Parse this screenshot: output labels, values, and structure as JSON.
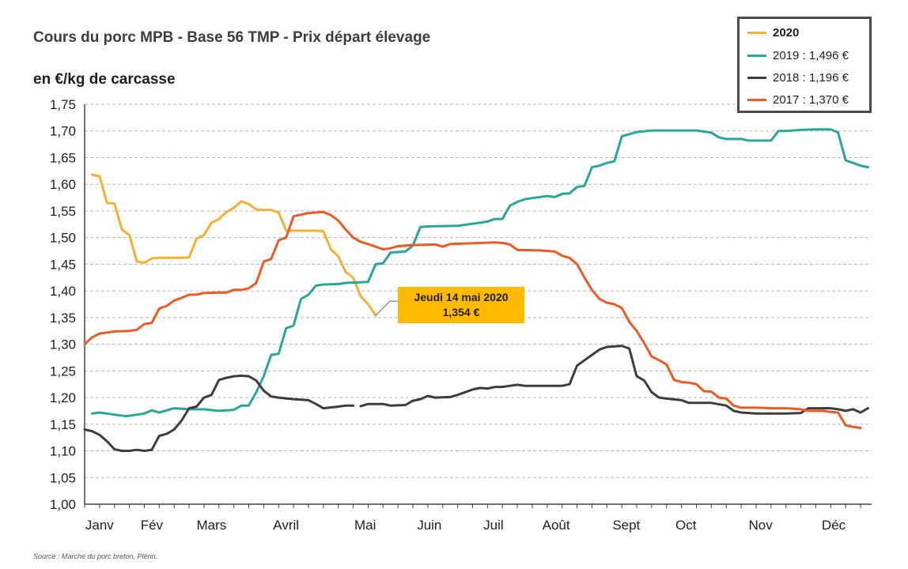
{
  "header": {
    "title": "Cours du porc MPB - Base 56 TMP - Prix départ élevage",
    "unit_label": "en €/kg de carcasse"
  },
  "legend": {
    "items": [
      {
        "label": "2020",
        "color": "#f5b230"
      },
      {
        "label": "2019 : 1,496 €",
        "color": "#2aa79b"
      },
      {
        "label": "2018 : 1,196 €",
        "color": "#3d3d3d"
      },
      {
        "label": "2017 : 1,370 €",
        "color": "#ee5a24"
      }
    ]
  },
  "callout": {
    "line1": "Jeudi 14 mai 2020",
    "line2": "1,354 €",
    "color": "#fdba00"
  },
  "footer": {
    "source": "Source : Marché du porc breton, Plérin."
  },
  "chart_data": {
    "type": "line",
    "ylim": [
      1.0,
      1.75
    ],
    "xlim": [
      0,
      52
    ],
    "y_ticks": [
      "1,00",
      "1,05",
      "1,10",
      "1,15",
      "1,20",
      "1,25",
      "1,30",
      "1,35",
      "1,40",
      "1,45",
      "1,50",
      "1,55",
      "1,60",
      "1,65",
      "1,70",
      "1,75"
    ],
    "months": [
      {
        "label": "Janv",
        "x": 1.0
      },
      {
        "label": "Fév",
        "x": 4.5
      },
      {
        "label": "Mars",
        "x": 8.5
      },
      {
        "label": "Avril",
        "x": 13.5
      },
      {
        "label": "Mai",
        "x": 18.8
      },
      {
        "label": "Juin",
        "x": 23.1
      },
      {
        "label": "Juil",
        "x": 27.4
      },
      {
        "label": "Août",
        "x": 31.6
      },
      {
        "label": "Sept",
        "x": 36.3
      },
      {
        "label": "Oct",
        "x": 40.3
      },
      {
        "label": "Nov",
        "x": 45.3
      },
      {
        "label": "Déc",
        "x": 50.2
      }
    ],
    "grid": true,
    "legend_position": "top-right",
    "series": [
      {
        "name": "2020",
        "color": "#f5b230",
        "points": [
          [
            0.5,
            1.618
          ],
          [
            1,
            1.615
          ],
          [
            1.5,
            1.565
          ],
          [
            2,
            1.564
          ],
          [
            2.5,
            1.515
          ],
          [
            3,
            1.505
          ],
          [
            3.5,
            1.455
          ],
          [
            4,
            1.453
          ],
          [
            4.5,
            1.461
          ],
          [
            5,
            1.462
          ],
          [
            5.5,
            1.462
          ],
          [
            6,
            1.462
          ],
          [
            6.5,
            1.462
          ],
          [
            7,
            1.463
          ],
          [
            7.5,
            1.498
          ],
          [
            8,
            1.505
          ],
          [
            8.5,
            1.528
          ],
          [
            9,
            1.535
          ],
          [
            9.5,
            1.548
          ],
          [
            10,
            1.556
          ],
          [
            10.5,
            1.568
          ],
          [
            11,
            1.563
          ],
          [
            11.5,
            1.553
          ],
          [
            12,
            1.552
          ],
          [
            12.5,
            1.552
          ],
          [
            13,
            1.547
          ],
          [
            13.5,
            1.513
          ],
          [
            14,
            1.513
          ],
          [
            14.5,
            1.513
          ],
          [
            15,
            1.513
          ],
          [
            15.5,
            1.513
          ],
          [
            16,
            1.512
          ],
          [
            16.5,
            1.478
          ],
          [
            17,
            1.465
          ],
          [
            17.5,
            1.435
          ],
          [
            18,
            1.425
          ],
          [
            18.5,
            1.39
          ],
          [
            19,
            1.375
          ],
          [
            19.5,
            1.354
          ]
        ]
      },
      {
        "name": "2019 : 1,496 €",
        "color": "#2aa79b",
        "points": [
          [
            0.5,
            1.17
          ],
          [
            1,
            1.172
          ],
          [
            2,
            1.168
          ],
          [
            2.8,
            1.165
          ],
          [
            3.5,
            1.168
          ],
          [
            4,
            1.17
          ],
          [
            4.5,
            1.176
          ],
          [
            5,
            1.172
          ],
          [
            6,
            1.18
          ],
          [
            7,
            1.178
          ],
          [
            8,
            1.178
          ],
          [
            9,
            1.175
          ],
          [
            10,
            1.177
          ],
          [
            10.5,
            1.185
          ],
          [
            11,
            1.185
          ],
          [
            11.5,
            1.21
          ],
          [
            12,
            1.24
          ],
          [
            12.5,
            1.28
          ],
          [
            13,
            1.282
          ],
          [
            13.5,
            1.33
          ],
          [
            14,
            1.335
          ],
          [
            14.5,
            1.385
          ],
          [
            15,
            1.393
          ],
          [
            15.5,
            1.41
          ],
          [
            16,
            1.412
          ],
          [
            17,
            1.413
          ],
          [
            17.5,
            1.415
          ],
          [
            19,
            1.417
          ],
          [
            19.5,
            1.45
          ],
          [
            20,
            1.452
          ],
          [
            20.5,
            1.472
          ],
          [
            21,
            1.473
          ],
          [
            21.5,
            1.474
          ],
          [
            22,
            1.485
          ],
          [
            22.5,
            1.52
          ],
          [
            23,
            1.521
          ],
          [
            25,
            1.522
          ],
          [
            26,
            1.526
          ],
          [
            27,
            1.53
          ],
          [
            27.5,
            1.535
          ],
          [
            28,
            1.535
          ],
          [
            28.5,
            1.56
          ],
          [
            29,
            1.567
          ],
          [
            29.5,
            1.572
          ],
          [
            30,
            1.574
          ],
          [
            31,
            1.578
          ],
          [
            31.5,
            1.576
          ],
          [
            32,
            1.582
          ],
          [
            32.5,
            1.583
          ],
          [
            33,
            1.595
          ],
          [
            33.5,
            1.597
          ],
          [
            34,
            1.632
          ],
          [
            34.5,
            1.635
          ],
          [
            35,
            1.64
          ],
          [
            35.5,
            1.643
          ],
          [
            36,
            1.69
          ],
          [
            37,
            1.698
          ],
          [
            38,
            1.701
          ],
          [
            41,
            1.701
          ],
          [
            42,
            1.697
          ],
          [
            42.5,
            1.688
          ],
          [
            43,
            1.685
          ],
          [
            44,
            1.685
          ],
          [
            44.5,
            1.682
          ],
          [
            46,
            1.682
          ],
          [
            46.5,
            1.7
          ],
          [
            47,
            1.7
          ],
          [
            48,
            1.702
          ],
          [
            49,
            1.703
          ],
          [
            50,
            1.703
          ],
          [
            50.5,
            1.697
          ],
          [
            51,
            1.645
          ],
          [
            52,
            1.635
          ],
          [
            52.5,
            1.632
          ]
        ]
      },
      {
        "name": "2018 : 1,196 €",
        "color": "#3d3d3d",
        "points": [
          [
            0,
            1.14
          ],
          [
            0.5,
            1.137
          ],
          [
            1,
            1.13
          ],
          [
            1.5,
            1.118
          ],
          [
            2,
            1.103
          ],
          [
            2.5,
            1.1
          ],
          [
            3,
            1.1
          ],
          [
            3.5,
            1.102
          ],
          [
            4,
            1.1
          ],
          [
            4.5,
            1.102
          ],
          [
            5,
            1.128
          ],
          [
            5.5,
            1.132
          ],
          [
            6,
            1.14
          ],
          [
            6.5,
            1.157
          ],
          [
            7,
            1.18
          ],
          [
            7.5,
            1.183
          ],
          [
            8,
            1.2
          ],
          [
            8.5,
            1.205
          ],
          [
            9,
            1.233
          ],
          [
            9.5,
            1.237
          ],
          [
            10,
            1.24
          ],
          [
            10.5,
            1.241
          ],
          [
            11,
            1.24
          ],
          [
            11.5,
            1.232
          ],
          [
            12,
            1.213
          ],
          [
            12.5,
            1.202
          ],
          [
            13,
            1.2
          ],
          [
            14,
            1.197
          ],
          [
            15,
            1.195
          ],
          [
            15.5,
            1.188
          ],
          [
            16,
            1.18
          ],
          [
            17,
            1.183
          ],
          [
            17.5,
            1.185
          ],
          [
            18,
            1.185
          ]
        ]
      },
      {
        "name": "2018 : 1,196 €",
        "color": "#3d3d3d",
        "points": [
          [
            18.5,
            1.184
          ],
          [
            19,
            1.188
          ],
          [
            20,
            1.188
          ],
          [
            20.5,
            1.185
          ],
          [
            21.5,
            1.186
          ],
          [
            22,
            1.194
          ],
          [
            22.5,
            1.197
          ],
          [
            23,
            1.203
          ],
          [
            23.5,
            1.2
          ],
          [
            24.5,
            1.201
          ],
          [
            25,
            1.205
          ],
          [
            25.5,
            1.21
          ],
          [
            26,
            1.215
          ],
          [
            26.5,
            1.218
          ],
          [
            27,
            1.217
          ],
          [
            27.5,
            1.22
          ],
          [
            28,
            1.22
          ],
          [
            28.5,
            1.222
          ],
          [
            29,
            1.224
          ],
          [
            29.5,
            1.222
          ],
          [
            32,
            1.222
          ],
          [
            32.5,
            1.225
          ],
          [
            33,
            1.26
          ],
          [
            33.5,
            1.27
          ],
          [
            34,
            1.28
          ],
          [
            34.5,
            1.29
          ],
          [
            35,
            1.295
          ],
          [
            36,
            1.297
          ],
          [
            36.5,
            1.292
          ],
          [
            37,
            1.24
          ],
          [
            37.5,
            1.232
          ],
          [
            38,
            1.21
          ],
          [
            38.5,
            1.2
          ],
          [
            39,
            1.198
          ],
          [
            40,
            1.195
          ],
          [
            40.5,
            1.19
          ],
          [
            42,
            1.19
          ],
          [
            43,
            1.185
          ],
          [
            43.5,
            1.175
          ],
          [
            44,
            1.172
          ],
          [
            45,
            1.17
          ],
          [
            47,
            1.17
          ],
          [
            48,
            1.171
          ],
          [
            48.5,
            1.18
          ],
          [
            50,
            1.18
          ],
          [
            50.5,
            1.178
          ],
          [
            51,
            1.175
          ],
          [
            51.5,
            1.178
          ],
          [
            52,
            1.172
          ],
          [
            52.5,
            1.18
          ]
        ]
      },
      {
        "name": "2017 : 1,370 €",
        "color": "#ee5a24",
        "points": [
          [
            0,
            1.3
          ],
          [
            0.5,
            1.313
          ],
          [
            1,
            1.32
          ],
          [
            1.5,
            1.322
          ],
          [
            2,
            1.324
          ],
          [
            3,
            1.325
          ],
          [
            3.5,
            1.327
          ],
          [
            4,
            1.338
          ],
          [
            4.5,
            1.34
          ],
          [
            5,
            1.367
          ],
          [
            5.5,
            1.372
          ],
          [
            6,
            1.382
          ],
          [
            6.5,
            1.387
          ],
          [
            7,
            1.393
          ],
          [
            7.5,
            1.393
          ],
          [
            8,
            1.396
          ],
          [
            9,
            1.397
          ],
          [
            9.5,
            1.397
          ],
          [
            10,
            1.402
          ],
          [
            10.5,
            1.402
          ],
          [
            11,
            1.405
          ],
          [
            11.5,
            1.415
          ],
          [
            12,
            1.455
          ],
          [
            12.5,
            1.46
          ],
          [
            13,
            1.495
          ],
          [
            13.5,
            1.5
          ],
          [
            14,
            1.54
          ],
          [
            14.5,
            1.543
          ],
          [
            15,
            1.546
          ],
          [
            16,
            1.548
          ],
          [
            16.5,
            1.542
          ],
          [
            17,
            1.532
          ],
          [
            17.5,
            1.515
          ],
          [
            18,
            1.5
          ],
          [
            18.5,
            1.492
          ],
          [
            19,
            1.488
          ],
          [
            20,
            1.478
          ],
          [
            20.5,
            1.48
          ],
          [
            21,
            1.484
          ],
          [
            22,
            1.486
          ],
          [
            23.5,
            1.487
          ],
          [
            24,
            1.483
          ],
          [
            24.5,
            1.488
          ],
          [
            25.5,
            1.489
          ],
          [
            27.5,
            1.491
          ],
          [
            28,
            1.49
          ],
          [
            28.5,
            1.487
          ],
          [
            29,
            1.477
          ],
          [
            30.5,
            1.476
          ],
          [
            31.5,
            1.474
          ],
          [
            32,
            1.466
          ],
          [
            32.5,
            1.462
          ],
          [
            33,
            1.45
          ],
          [
            33.5,
            1.425
          ],
          [
            34,
            1.402
          ],
          [
            34.5,
            1.385
          ],
          [
            35,
            1.378
          ],
          [
            35.5,
            1.375
          ],
          [
            36,
            1.368
          ],
          [
            36.5,
            1.342
          ],
          [
            37,
            1.325
          ],
          [
            37.5,
            1.302
          ],
          [
            38,
            1.277
          ],
          [
            38.5,
            1.27
          ],
          [
            39,
            1.262
          ],
          [
            39.5,
            1.233
          ],
          [
            40,
            1.229
          ],
          [
            40.5,
            1.228
          ],
          [
            41,
            1.225
          ],
          [
            41.5,
            1.212
          ],
          [
            42,
            1.211
          ],
          [
            42.5,
            1.2
          ],
          [
            43,
            1.198
          ],
          [
            43.5,
            1.185
          ],
          [
            44,
            1.181
          ],
          [
            45,
            1.181
          ],
          [
            46,
            1.18
          ],
          [
            47,
            1.18
          ],
          [
            48,
            1.178
          ],
          [
            48.5,
            1.175
          ],
          [
            49.5,
            1.175
          ],
          [
            50,
            1.173
          ],
          [
            50.5,
            1.172
          ],
          [
            51,
            1.148
          ],
          [
            51.5,
            1.145
          ],
          [
            52,
            1.143
          ]
        ]
      }
    ]
  }
}
